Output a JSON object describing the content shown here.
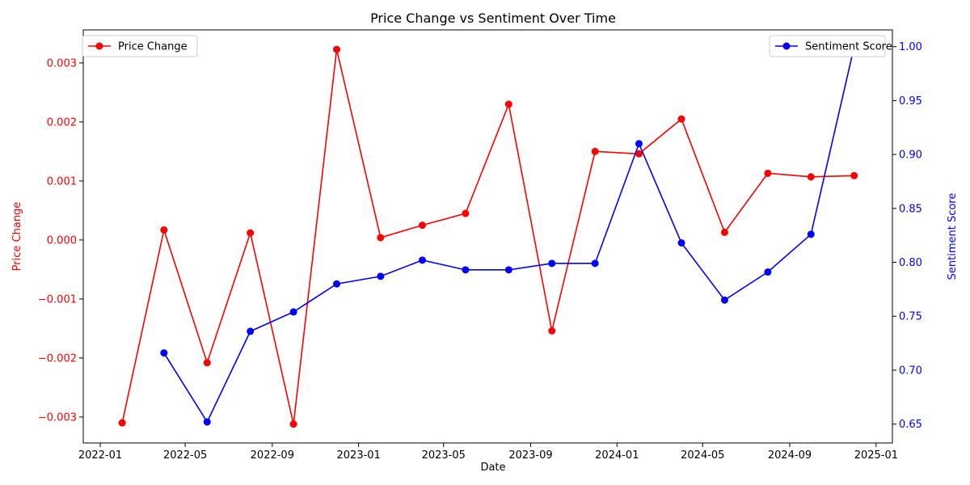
{
  "chart_data": {
    "type": "line",
    "title": "Price Change vs Sentiment Over Time",
    "xlabel": "Date",
    "ylabel_left": "Price Change",
    "ylabel_right": "Sentiment Score",
    "x_ticks": [
      "2022-01",
      "2022-05",
      "2022-09",
      "2023-01",
      "2023-05",
      "2023-09",
      "2024-01",
      "2024-05",
      "2024-09",
      "2025-01"
    ],
    "y_left_ticks": [
      "−0.003",
      "−0.002",
      "−0.001",
      "0.000",
      "0.001",
      "0.002",
      "0.003"
    ],
    "y_right_ticks": [
      "0.65",
      "0.70",
      "0.75",
      "0.80",
      "0.85",
      "0.90",
      "0.95",
      "1.00"
    ],
    "xlim": [
      "2021-12-08",
      "2025-01-24"
    ],
    "ylim_left": [
      -0.00344,
      0.00356
    ],
    "ylim_right": [
      0.6325,
      1.0155
    ],
    "grid": false,
    "series": [
      {
        "name": "Price Change",
        "axis": "left",
        "color": "#ff0000",
        "legend_position": "top-left",
        "x": [
          "2022-02-01",
          "2022-04-01",
          "2022-06-01",
          "2022-08-01",
          "2022-10-01",
          "2022-12-01",
          "2023-02-01",
          "2023-04-01",
          "2023-06-01",
          "2023-08-01",
          "2023-10-01",
          "2023-12-01",
          "2024-02-01",
          "2024-04-01",
          "2024-06-01",
          "2024-08-01",
          "2024-10-01",
          "2024-12-01"
        ],
        "values": [
          -0.0031,
          0.00017,
          -0.00208,
          0.00012,
          -0.00312,
          0.00323,
          4e-05,
          0.00025,
          0.00045,
          0.0023,
          -0.00154,
          0.0015,
          0.00146,
          0.00205,
          0.00013,
          0.00113,
          0.00107,
          0.00109
        ]
      },
      {
        "name": "Sentiment Score",
        "axis": "right",
        "color": "#0000ff",
        "legend_position": "top-right",
        "x": [
          "2022-04-01",
          "2022-06-01",
          "2022-08-01",
          "2022-10-01",
          "2022-12-01",
          "2023-02-01",
          "2023-04-01",
          "2023-06-01",
          "2023-08-01",
          "2023-10-01",
          "2023-12-01",
          "2024-02-01",
          "2024-04-01",
          "2024-06-01",
          "2024-08-01",
          "2024-10-01",
          "2024-12-01"
        ],
        "values": [
          0.716,
          0.652,
          0.736,
          0.754,
          0.78,
          0.787,
          0.802,
          0.793,
          0.793,
          0.799,
          0.799,
          0.91,
          0.818,
          0.765,
          0.791,
          0.826,
          1.0
        ]
      }
    ]
  }
}
